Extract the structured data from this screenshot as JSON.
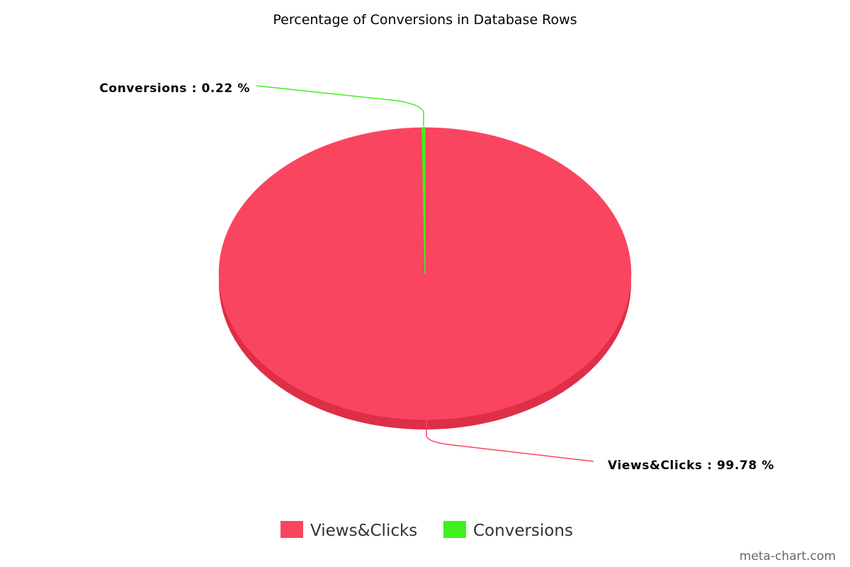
{
  "chart_data": {
    "type": "pie",
    "title": "Percentage of Conversions in Database Rows",
    "slices": [
      {
        "name": "Views&Clicks",
        "value": 99.78,
        "color": "#fa4560",
        "side_color": "#de2f48",
        "label": "Views&Clicks : 99.78 %"
      },
      {
        "name": "Conversions",
        "value": 0.22,
        "color": "#3ef01d",
        "side_color": "#2fb814",
        "label": "Conversions : 0.22 %"
      }
    ],
    "legend": {
      "placement": "bottom",
      "items": [
        "Views&Clicks",
        "Conversions"
      ]
    },
    "style": "3d"
  },
  "watermark": "meta-chart.com"
}
